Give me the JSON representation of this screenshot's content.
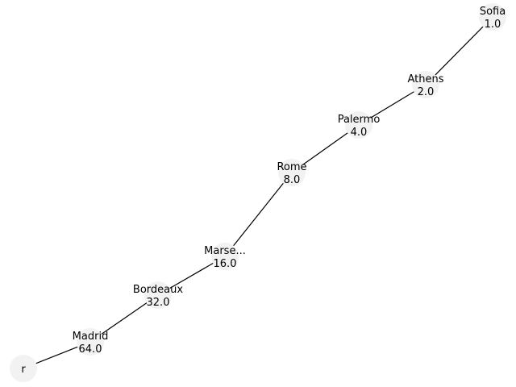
{
  "diagram": {
    "type": "tree",
    "root": "r",
    "nodes": [
      {
        "id": "r",
        "name": "r",
        "value": ""
      },
      {
        "id": "madrid",
        "name": "Madrid",
        "value": "64.0"
      },
      {
        "id": "bordeaux",
        "name": "Bordeaux",
        "value": "32.0"
      },
      {
        "id": "marseille",
        "name": "Marse...",
        "value": "16.0"
      },
      {
        "id": "rome",
        "name": "Rome",
        "value": "8.0"
      },
      {
        "id": "palermo",
        "name": "Palermo",
        "value": "4.0"
      },
      {
        "id": "athens",
        "name": "Athens",
        "value": "2.0"
      },
      {
        "id": "sofia",
        "name": "Sofia",
        "value": "1.0"
      }
    ],
    "edges": [
      [
        "r",
        "madrid"
      ],
      [
        "madrid",
        "bordeaux"
      ],
      [
        "bordeaux",
        "marseille"
      ],
      [
        "marseille",
        "rome"
      ],
      [
        "rome",
        "palermo"
      ],
      [
        "palermo",
        "athens"
      ],
      [
        "athens",
        "sofia"
      ]
    ],
    "colors": {
      "node_fill": "#f2f2f2",
      "edge": "#000000",
      "text": "#000000"
    }
  }
}
